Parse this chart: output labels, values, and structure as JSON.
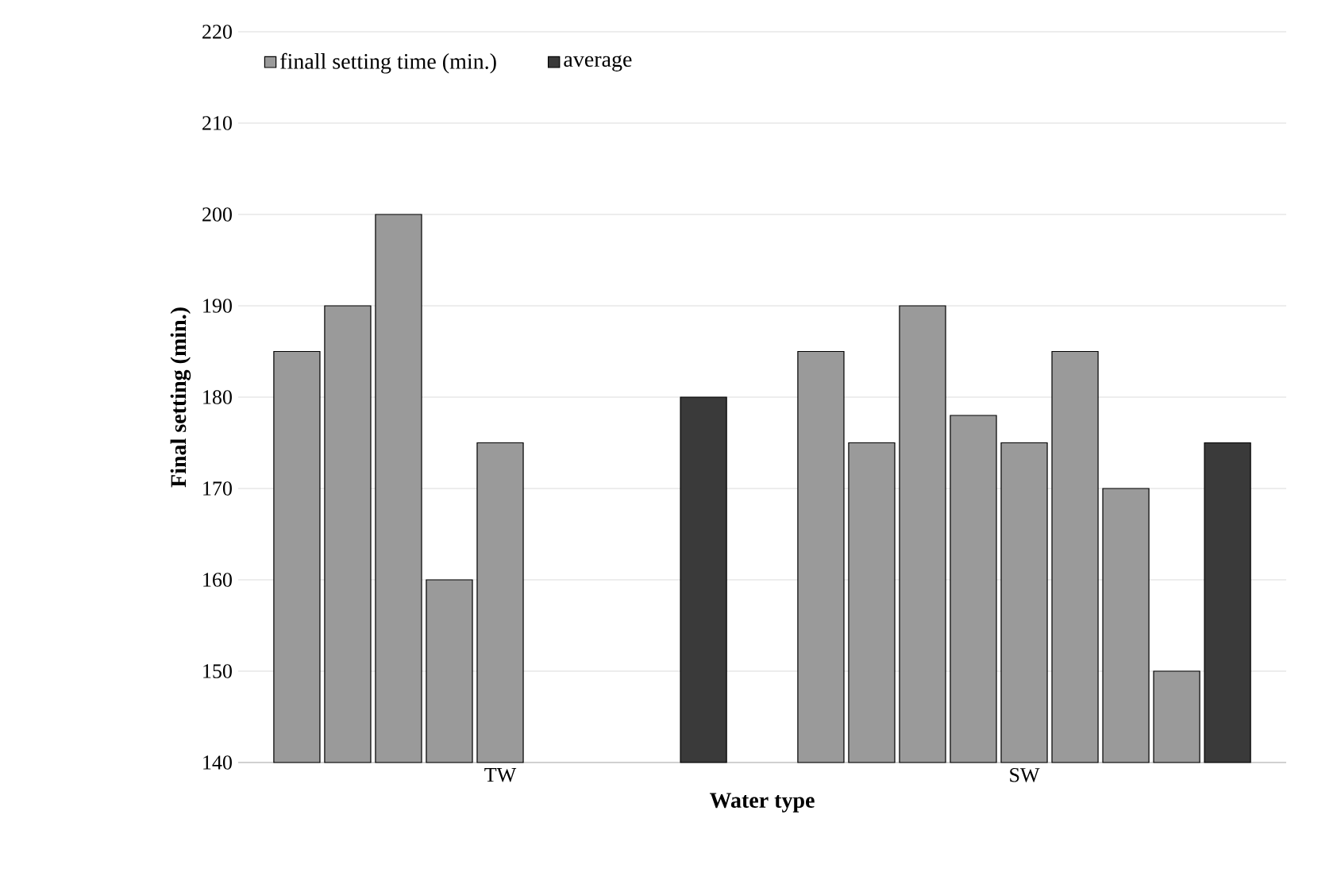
{
  "chart_data": {
    "type": "bar",
    "xlabel": "Water type",
    "ylabel": "Final setting (min.)",
    "categories": [
      "TW",
      "SW"
    ],
    "series": [
      {
        "name": "finall setting time (min.)",
        "color": "#9a9a9a",
        "values": [
          185,
          185
        ]
      },
      {
        "color": "#9a9a9a",
        "values": [
          190,
          175
        ]
      },
      {
        "color": "#9a9a9a",
        "values": [
          200,
          190
        ]
      },
      {
        "color": "#9a9a9a",
        "values": [
          160,
          178
        ]
      },
      {
        "color": "#9a9a9a",
        "values": [
          175,
          175
        ]
      },
      {
        "color": "#9a9a9a",
        "values": [
          null,
          185
        ]
      },
      {
        "color": "#9a9a9a",
        "values": [
          null,
          170
        ]
      },
      {
        "color": "#9a9a9a",
        "values": [
          null,
          150
        ]
      },
      {
        "name": "average",
        "color": "#3a3a3a",
        "values": [
          180,
          175
        ]
      }
    ],
    "ylim": [
      140,
      220
    ],
    "yticks": [
      140,
      150,
      160,
      170,
      180,
      190,
      200,
      210,
      220
    ],
    "grid": "y",
    "legend": "top left"
  }
}
